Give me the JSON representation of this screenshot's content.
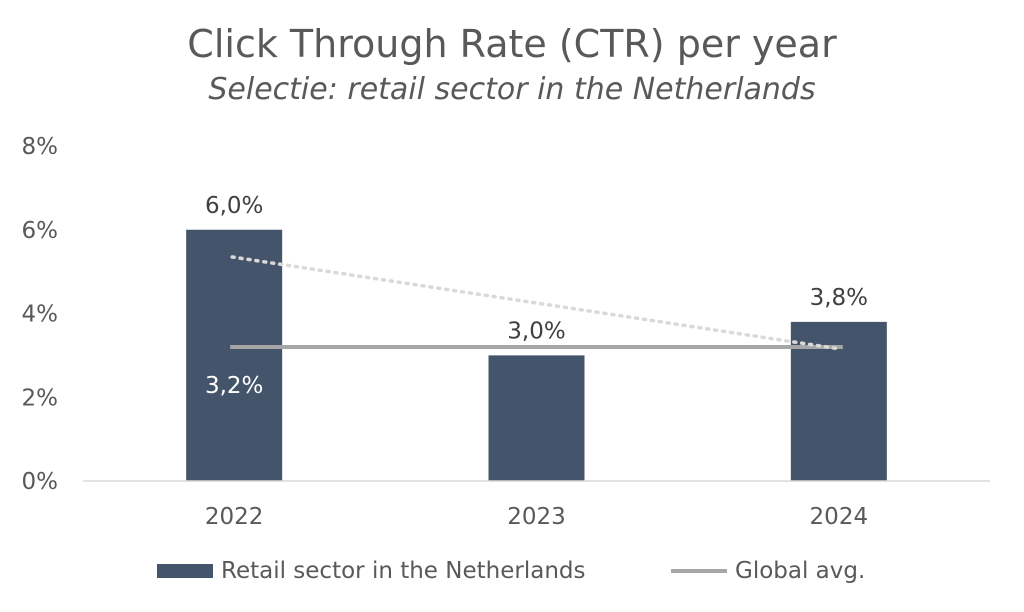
{
  "chart_data": {
    "type": "bar",
    "title": "Click Through Rate (CTR) per year",
    "subtitle": "Selectie: retail sector in the Netherlands",
    "categories": [
      "2022",
      "2023",
      "2024"
    ],
    "ylim": [
      0,
      8
    ],
    "yticks": [
      0,
      2,
      4,
      6,
      8
    ],
    "ytick_labels": [
      "0%",
      "2%",
      "4%",
      "6%",
      "8%"
    ],
    "series": [
      {
        "name": "Retail sector in the Netherlands",
        "type": "bar",
        "values": [
          6.0,
          3.0,
          3.8
        ],
        "labels": [
          "6,0%",
          "3,0%",
          "3,8%"
        ],
        "color": "#44546a"
      },
      {
        "name": "Global avg.",
        "type": "line",
        "values": [
          3.2,
          3.2,
          3.2
        ],
        "labels": [
          "3,2%"
        ],
        "color": "#a6a6a6"
      }
    ],
    "trendline": {
      "type": "linear",
      "color": "#d9d9d9",
      "style": "dotted",
      "start": 5.35,
      "end": 3.15
    },
    "grid": false,
    "legend": "bottom"
  }
}
